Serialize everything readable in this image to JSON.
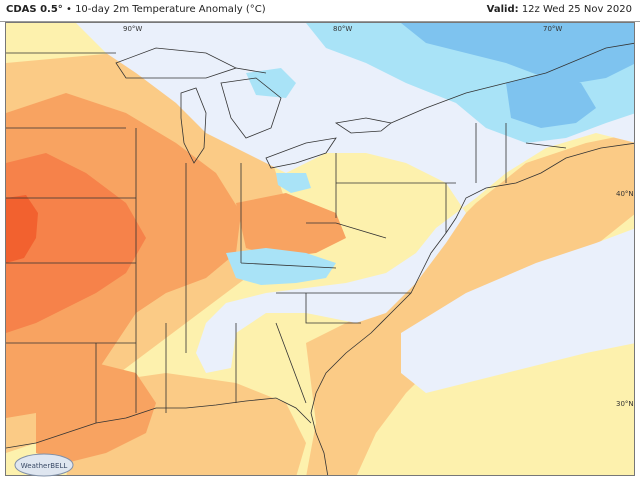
{
  "header": {
    "model": "CDAS 0.5°",
    "separator": "•",
    "title": "10-day 2m Temperature Anomaly (°C)",
    "valid_label": "Valid:",
    "valid_time": "12z Wed 25 Nov 2020"
  },
  "map": {
    "longitude_labels": [
      "90°W",
      "80°W",
      "70°W"
    ],
    "latitude_labels": [
      "40°N",
      "30°N"
    ],
    "colors": {
      "cool_light": "#eaf0fb",
      "cool_cyan": "#a9e3f7",
      "cool_blue": "#7ec3ef",
      "warm_pale": "#fdf1ad",
      "warm_yellow": "#fde394",
      "warm_tan": "#fbcb86",
      "warm_orange": "#f8a361",
      "warm_strong": "#f6824a",
      "warm_red": "#f2612f"
    }
  },
  "logo": {
    "text": "WeatherBELL"
  }
}
